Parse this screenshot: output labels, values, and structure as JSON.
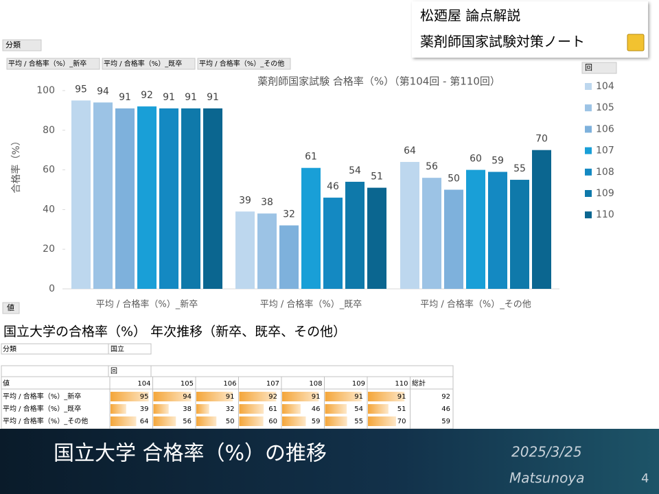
{
  "header": {
    "brand": "松廼屋 論点解説",
    "series_name": "薬剤師国家試験対策ノート"
  },
  "chart_data": {
    "type": "bar",
    "title": "薬剤師国家試験 合格率（%）（第104回 - 第110回）",
    "y_label": "合格率（%）",
    "legend_title": "回",
    "categories": [
      "平均 / 合格率（%）_新卒",
      "平均 / 合格率（%）_既卒",
      "平均 / 合格率（%）_その他"
    ],
    "series": [
      {
        "name": "104",
        "color": "#bdd7ee",
        "values": [
          95,
          39,
          64
        ]
      },
      {
        "name": "105",
        "color": "#9cc3e5",
        "values": [
          94,
          38,
          56
        ]
      },
      {
        "name": "106",
        "color": "#7eb1dc",
        "values": [
          91,
          32,
          50
        ]
      },
      {
        "name": "107",
        "color": "#199fd7",
        "values": [
          92,
          61,
          60
        ]
      },
      {
        "name": "108",
        "color": "#1489c2",
        "values": [
          91,
          46,
          59
        ]
      },
      {
        "name": "109",
        "color": "#0f79aa",
        "values": [
          91,
          54,
          55
        ]
      },
      {
        "name": "110",
        "color": "#0b6690",
        "values": [
          91,
          51,
          70
        ]
      }
    ],
    "ylim": [
      0,
      100
    ],
    "yticks": [
      0,
      20,
      40,
      60,
      80,
      100
    ],
    "grid": false
  },
  "section_title": "国立大学の合格率（%） 年次推移（新卒、既卒、その他）",
  "table": {
    "filter_label": "分類",
    "filter_value": "国立",
    "column_field": "回",
    "value_label": "値",
    "total_label": "総計",
    "totals": [
      92,
      46,
      59
    ]
  },
  "footer": {
    "title": "国立大学 合格率（%）の推移",
    "date": "2025/3/25",
    "author": "Matsunoya",
    "page": "4"
  }
}
